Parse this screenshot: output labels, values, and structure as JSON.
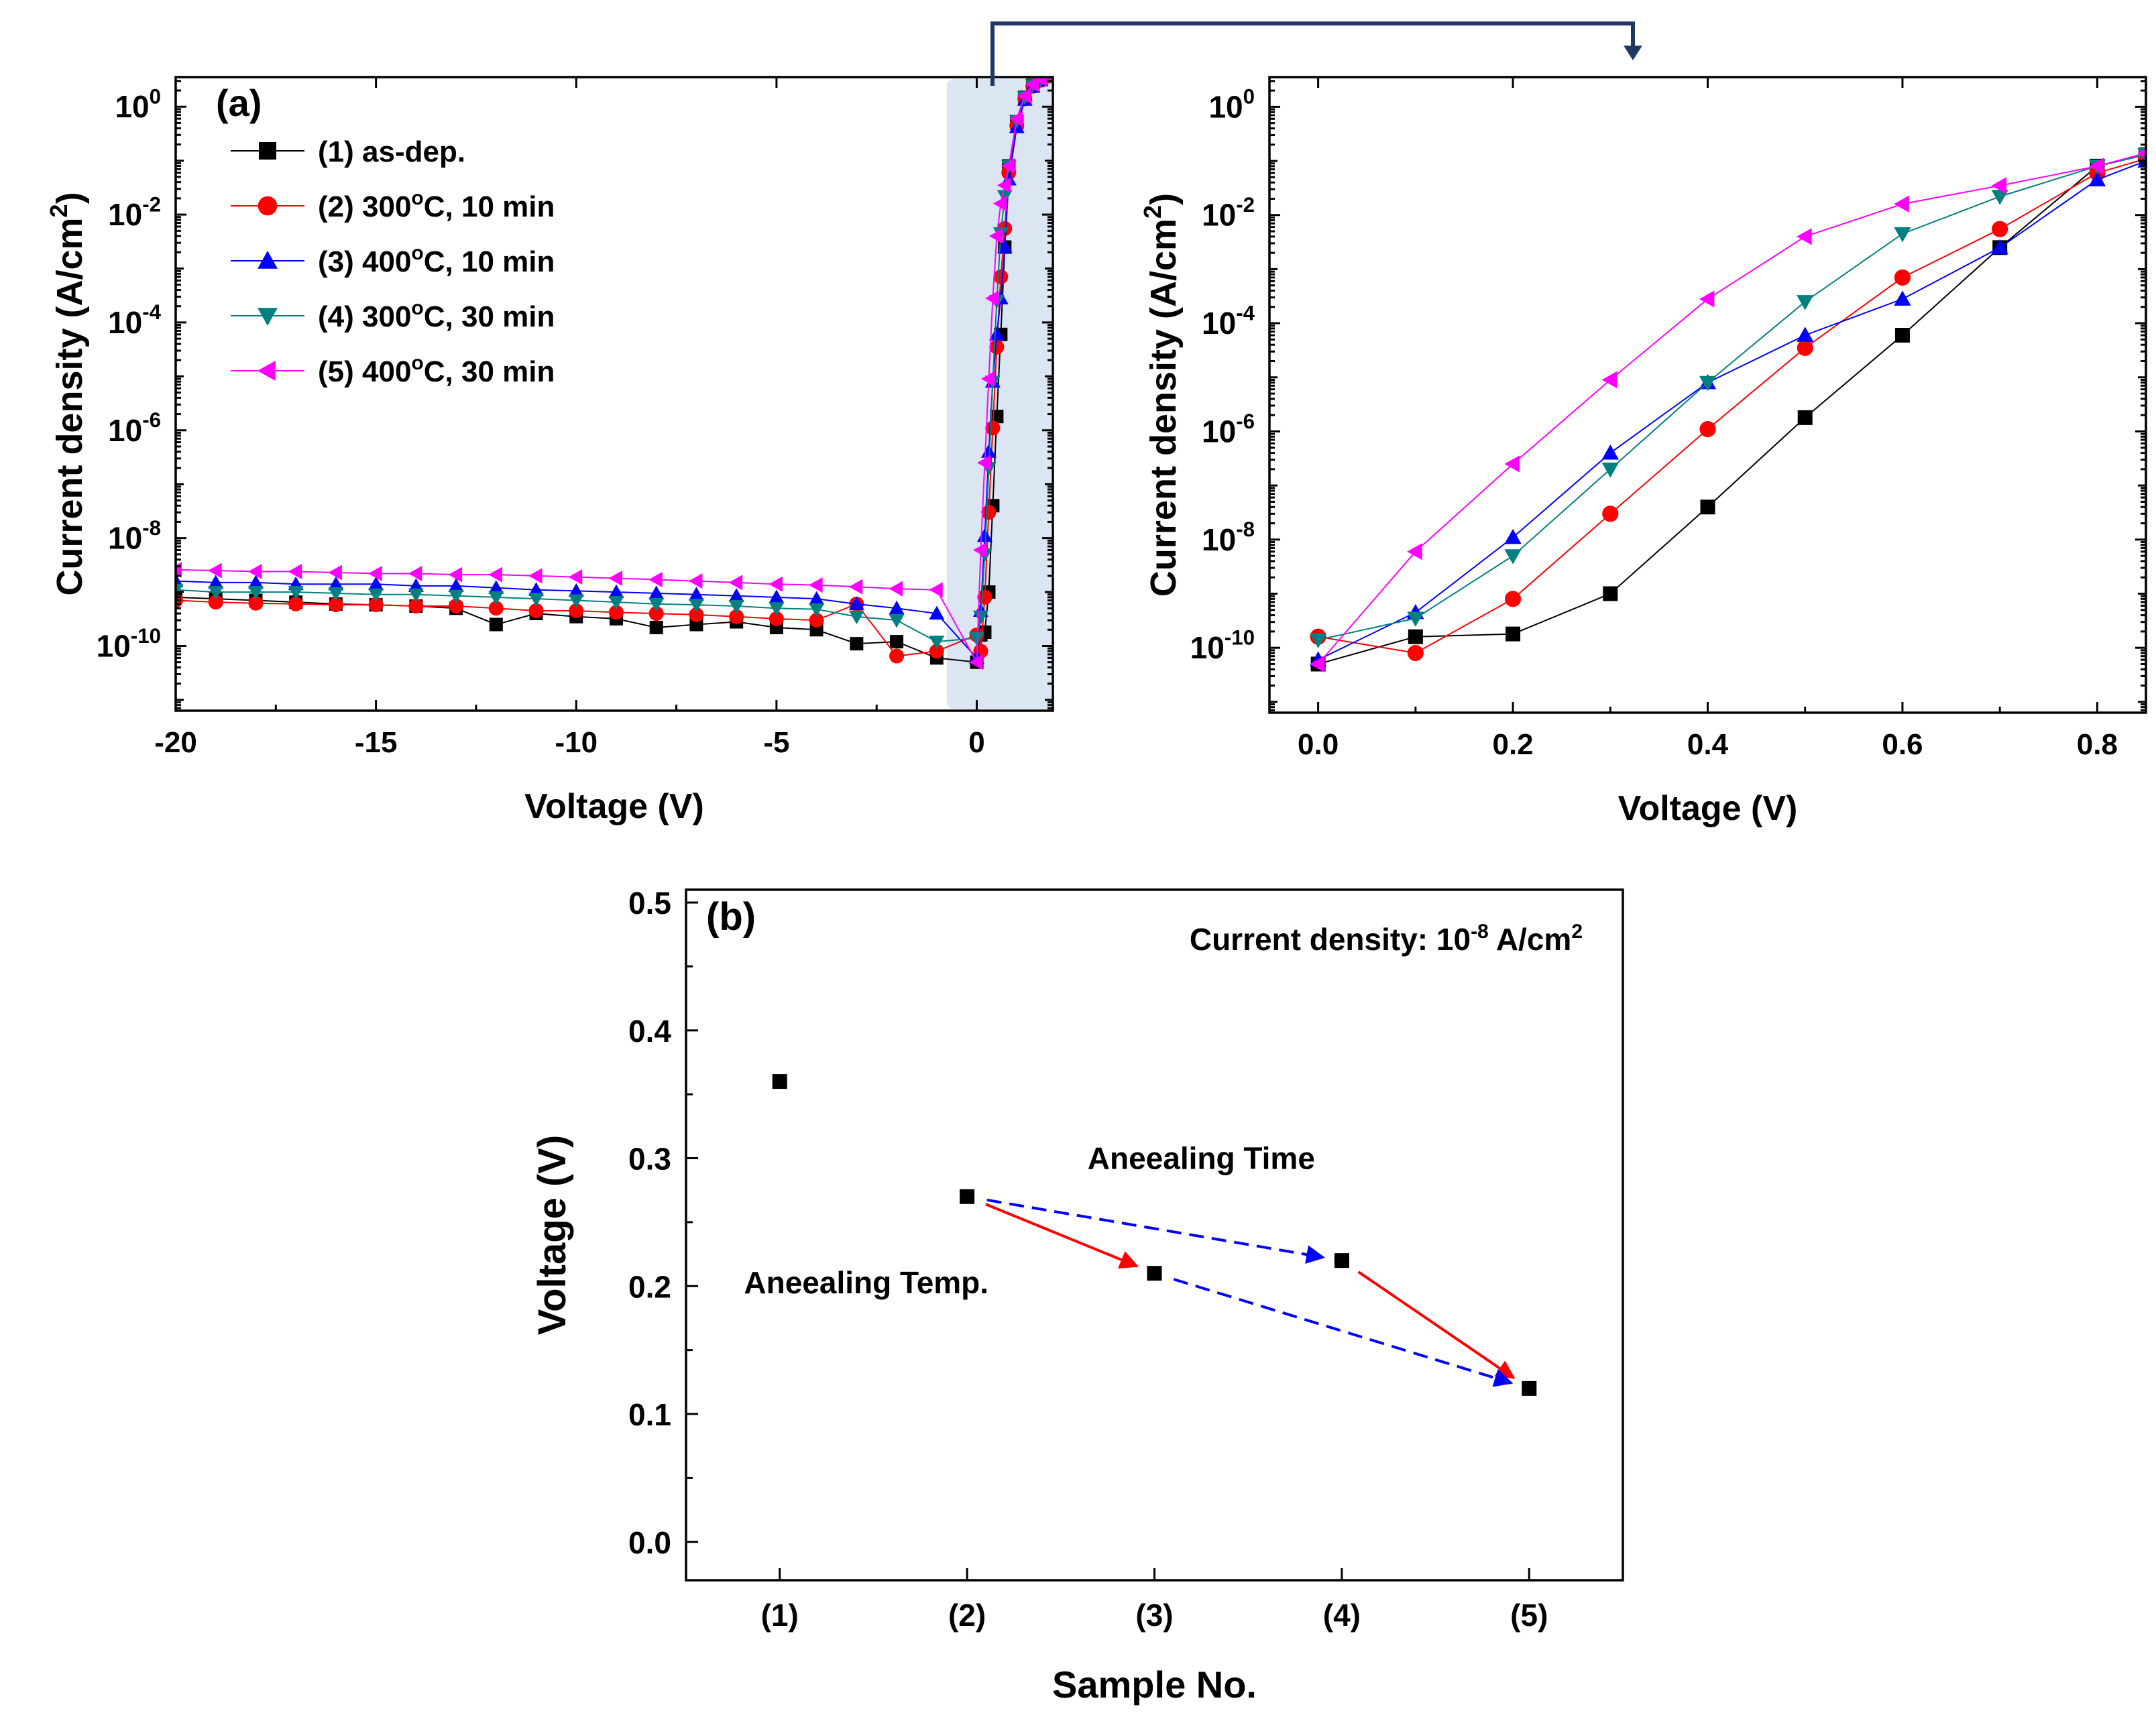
{
  "chart_data": [
    {
      "type": "line",
      "panel_label": "(a)",
      "xlabel": "Voltage (V)",
      "ylabel": "Current density (A/cm²)",
      "xlim": [
        -20,
        1.9
      ],
      "ylim_log10": [
        -11.2,
        0.55
      ],
      "x_ticks": [
        "-20",
        "-15",
        "-10",
        "-5",
        "0"
      ],
      "y_ticks": [
        {
          "base": "10",
          "exp": "0"
        },
        {
          "base": "10",
          "exp": "-2"
        },
        {
          "base": "10",
          "exp": "-4"
        },
        {
          "base": "10",
          "exp": "-6"
        },
        {
          "base": "10",
          "exp": "-8"
        },
        {
          "base": "10",
          "exp": "-10"
        }
      ],
      "series": [
        {
          "name": "(1) as-dep.",
          "color": "#000000",
          "marker": "square",
          "x": [
            -20,
            -19,
            -18,
            -17,
            -16,
            -15,
            -14,
            -13,
            -12,
            -11,
            -10,
            -9,
            -8,
            -7,
            -6,
            -5,
            -4,
            -3,
            -2,
            -1,
            0,
            0.1,
            0.2,
            0.3,
            0.4,
            0.5,
            0.6,
            0.7,
            0.8,
            1.0,
            1.2,
            1.4,
            1.6,
            1.8
          ],
          "y": [
            8e-10,
            7.5e-10,
            7e-10,
            6.5e-10,
            6e-10,
            5.8e-10,
            5.5e-10,
            5e-10,
            2.5e-10,
            4e-10,
            3.5e-10,
            3.2e-10,
            2.2e-10,
            2.5e-10,
            2.8e-10,
            2.2e-10,
            2e-10,
            1.1e-10,
            1.2e-10,
            6e-11,
            5e-11,
            1.6e-10,
            1.8e-10,
            1e-09,
            4e-08,
            1.8e-06,
            6e-05,
            0.0025,
            0.08,
            0.5,
            1.5,
            2.5,
            3.2,
            3.8
          ]
        },
        {
          "name": "(2) 300°C, 10 min",
          "color": "#ff0000",
          "marker": "circle",
          "x": [
            -20,
            -19,
            -18,
            -17,
            -16,
            -15,
            -14,
            -13,
            -12,
            -11,
            -10,
            -9,
            -8,
            -7,
            -6,
            -5,
            -4,
            -3,
            -2,
            -1,
            0,
            0.1,
            0.2,
            0.3,
            0.4,
            0.5,
            0.6,
            0.7,
            0.8,
            1.0,
            1.2,
            1.4,
            1.6,
            1.8
          ],
          "y": [
            7e-10,
            6.5e-10,
            6.2e-10,
            6e-10,
            5.8e-10,
            5.8e-10,
            5.5e-10,
            5.5e-10,
            5e-10,
            4.5e-10,
            4.5e-10,
            4.2e-10,
            4e-10,
            3.8e-10,
            3.5e-10,
            3.2e-10,
            3e-10,
            6e-10,
            6.5e-11,
            8e-11,
            1.6e-10,
            8e-11,
            8e-10,
            3e-08,
            1.1e-06,
            3.5e-05,
            0.0007,
            0.0055,
            0.06,
            0.45,
            1.4,
            2.4,
            3.1,
            3.7
          ]
        },
        {
          "name": "(3) 400°C, 10 min",
          "color": "#0000ff",
          "marker": "triangle-up",
          "x": [
            -20,
            -19,
            -18,
            -17,
            -16,
            -15,
            -14,
            -13,
            -12,
            -11,
            -10,
            -9,
            -8,
            -7,
            -6,
            -5,
            -4,
            -3,
            -2,
            -1,
            0,
            0.1,
            0.2,
            0.3,
            0.4,
            0.5,
            0.6,
            0.7,
            0.8,
            1.0,
            1.2,
            1.4,
            1.6,
            1.8
          ],
          "y": [
            1.6e-09,
            1.5e-09,
            1.5e-09,
            1.4e-09,
            1.4e-09,
            1.4e-09,
            1.3e-09,
            1.3e-09,
            1.2e-09,
            1.1e-09,
            1.05e-09,
            1e-09,
            9.5e-10,
            9e-10,
            8.5e-10,
            8e-10,
            7.5e-10,
            6e-10,
            5e-10,
            4e-10,
            6e-11,
            4.5e-10,
            1.1e-08,
            4e-07,
            8e-06,
            6e-05,
            0.00028,
            0.0025,
            0.045,
            0.42,
            1.35,
            2.35,
            3.1,
            3.7
          ]
        },
        {
          "name": "(4) 300°C, 30 min",
          "color": "#008080",
          "marker": "triangle-down",
          "x": [
            -20,
            -19,
            -18,
            -17,
            -16,
            -15,
            -14,
            -13,
            -12,
            -11,
            -10,
            -9,
            -8,
            -7,
            -6,
            -5,
            -4,
            -3,
            -2,
            -1,
            0,
            0.1,
            0.2,
            0.3,
            0.4,
            0.5,
            0.6,
            0.7,
            0.8,
            1.0,
            1.2,
            1.4,
            1.6,
            1.8
          ],
          "y": [
            1.1e-09,
            1e-09,
            1e-09,
            1e-09,
            9.5e-10,
            9e-10,
            9e-10,
            8.5e-10,
            8e-10,
            7.5e-10,
            7e-10,
            6.5e-10,
            6e-10,
            5.8e-10,
            5.5e-10,
            5e-10,
            4.8e-10,
            3.5e-10,
            3e-10,
            1.2e-10,
            1.4e-10,
            3.5e-10,
            5e-09,
            2e-07,
            8e-06,
            0.00025,
            0.0045,
            0.022,
            0.08,
            0.55,
            1.5,
            2.5,
            3.2,
            3.8
          ]
        },
        {
          "name": "(5) 400°C, 30 min",
          "color": "#ff00ff",
          "marker": "triangle-left",
          "x": [
            -20,
            -19,
            -18,
            -17,
            -16,
            -15,
            -14,
            -13,
            -12,
            -11,
            -10,
            -9,
            -8,
            -7,
            -6,
            -5,
            -4,
            -3,
            -2,
            -1,
            0,
            0.1,
            0.2,
            0.3,
            0.4,
            0.5,
            0.6,
            0.7,
            0.8,
            1.0,
            1.2,
            1.4,
            1.6,
            1.8
          ],
          "y": [
            2.6e-09,
            2.5e-09,
            2.4e-09,
            2.4e-09,
            2.3e-09,
            2.2e-09,
            2.2e-09,
            2.1e-09,
            2.1e-09,
            2e-09,
            1.9e-09,
            1.8e-09,
            1.7e-09,
            1.6e-09,
            1.5e-09,
            1.4e-09,
            1.35e-09,
            1.25e-09,
            1.15e-09,
            1.1e-09,
            5e-11,
            6e-09,
            2.5e-07,
            9e-06,
            0.00028,
            0.004,
            0.016,
            0.035,
            0.08,
            0.6,
            1.6,
            2.6,
            3.3,
            3.9
          ]
        }
      ]
    },
    {
      "type": "line",
      "panel_label": "",
      "xlabel": "Voltage (V)",
      "ylabel": "Current density (A/cm²)",
      "xlim": [
        -0.05,
        0.85
      ],
      "ylim_log10": [
        -11.2,
        0.55
      ],
      "x_ticks": [
        "0.0",
        "0.2",
        "0.4",
        "0.6",
        "0.8"
      ],
      "y_ticks": [
        {
          "base": "10",
          "exp": "0"
        },
        {
          "base": "10",
          "exp": "-2"
        },
        {
          "base": "10",
          "exp": "-4"
        },
        {
          "base": "10",
          "exp": "-6"
        },
        {
          "base": "10",
          "exp": "-8"
        },
        {
          "base": "10",
          "exp": "-10"
        }
      ],
      "series": [
        {
          "name": "(1) as-dep.",
          "color": "#000000",
          "marker": "square",
          "x": [
            0,
            0.1,
            0.2,
            0.3,
            0.4,
            0.5,
            0.6,
            0.7,
            0.8,
            0.85
          ],
          "y": [
            5e-11,
            1.6e-10,
            1.8e-10,
            1e-09,
            4e-08,
            1.8e-06,
            6e-05,
            0.0025,
            0.08,
            0.13
          ]
        },
        {
          "name": "(2) 300°C, 10 min",
          "color": "#ff0000",
          "marker": "circle",
          "x": [
            0,
            0.1,
            0.2,
            0.3,
            0.4,
            0.5,
            0.6,
            0.7,
            0.8,
            0.85
          ],
          "y": [
            1.6e-10,
            8e-11,
            8e-10,
            3e-08,
            1.1e-06,
            3.5e-05,
            0.0007,
            0.0055,
            0.06,
            0.11
          ]
        },
        {
          "name": "(3) 400°C, 10 min",
          "color": "#0000ff",
          "marker": "triangle-up",
          "x": [
            0,
            0.1,
            0.2,
            0.3,
            0.4,
            0.5,
            0.6,
            0.7,
            0.8,
            0.85
          ],
          "y": [
            6e-11,
            4.5e-10,
            1.1e-08,
            4e-07,
            8e-06,
            6e-05,
            0.00028,
            0.0025,
            0.045,
            0.1
          ]
        },
        {
          "name": "(4) 300°C, 30 min",
          "color": "#008080",
          "marker": "triangle-down",
          "x": [
            0,
            0.1,
            0.2,
            0.3,
            0.4,
            0.5,
            0.6,
            0.7,
            0.8,
            0.85
          ],
          "y": [
            1.4e-10,
            3.5e-10,
            5e-09,
            2e-07,
            8e-06,
            0.00025,
            0.0045,
            0.022,
            0.08,
            0.13
          ]
        },
        {
          "name": "(5) 400°C, 30 min",
          "color": "#ff00ff",
          "marker": "triangle-left",
          "x": [
            0,
            0.1,
            0.2,
            0.3,
            0.4,
            0.5,
            0.6,
            0.7,
            0.8,
            0.85
          ],
          "y": [
            5e-11,
            6e-09,
            2.5e-07,
            9e-06,
            0.00028,
            0.004,
            0.016,
            0.035,
            0.08,
            0.14
          ]
        }
      ]
    },
    {
      "type": "scatter",
      "panel_label": "(b)",
      "xlabel": "Sample No.",
      "ylabel": "Voltage (V)",
      "xlim": [
        0.5,
        5.5
      ],
      "ylim": [
        -0.03,
        0.51
      ],
      "categories": [
        "(1)",
        "(2)",
        "(3)",
        "(4)",
        "(5)"
      ],
      "values": [
        0.36,
        0.27,
        0.21,
        0.22,
        0.12
      ],
      "y_ticks": [
        "0.0",
        "0.1",
        "0.2",
        "0.3",
        "0.4",
        "0.5"
      ],
      "annotation": {
        "prefix": "Current density: 10",
        "exp": "-8",
        "suffix": " A/cm",
        "unit_exp": "2"
      },
      "arrows": [
        {
          "label": "Aneealing Temp.",
          "color": "#ff0000",
          "style": "solid",
          "from": [
            2,
            0.27
          ],
          "to": [
            3,
            0.21
          ]
        },
        {
          "label": "",
          "color": "#ff0000",
          "style": "solid",
          "from": [
            4,
            0.22
          ],
          "to": [
            5,
            0.12
          ]
        },
        {
          "label": "Aneealing Time",
          "color": "#0000ff",
          "style": "dashed",
          "from": [
            2,
            0.27
          ],
          "to": [
            4,
            0.22
          ]
        },
        {
          "label": "",
          "color": "#0000ff",
          "style": "dashed",
          "from": [
            3,
            0.21
          ],
          "to": [
            5,
            0.12
          ]
        }
      ]
    }
  ]
}
